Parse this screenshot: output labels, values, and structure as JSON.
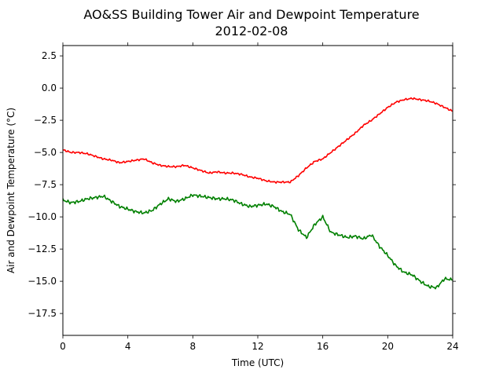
{
  "chart_data": {
    "type": "line",
    "title": "AO&SS Building Tower Air and Dewpoint Temperature",
    "subtitle": "2012-02-08",
    "xlabel": "Time (UTC)",
    "ylabel": "Air and Dewpoint Temperature (°C)",
    "xlim": [
      0,
      24
    ],
    "ylim": [
      -19.2,
      3.3
    ],
    "xticks": [
      0,
      4,
      8,
      12,
      16,
      20,
      24
    ],
    "xtick_labels": [
      "0",
      "4",
      "8",
      "12",
      "16",
      "20",
      "24"
    ],
    "yticks": [
      2.5,
      0.0,
      -2.5,
      -5.0,
      -7.5,
      -10.0,
      -12.5,
      -15.0,
      -17.5
    ],
    "ytick_labels": [
      "2.5",
      "0.0",
      "−2.5",
      "−5.0",
      "−7.5",
      "−10.0",
      "−12.5",
      "−15.0",
      "−17.5"
    ],
    "grid": false,
    "legend": "none",
    "series": [
      {
        "color": "#ff0000",
        "x": [
          0,
          0.5,
          1,
          1.5,
          2,
          2.5,
          3,
          3.5,
          4,
          4.5,
          5,
          5.5,
          6,
          6.5,
          7,
          7.5,
          8,
          8.5,
          9,
          9.5,
          10,
          10.5,
          11,
          11.5,
          12,
          12.5,
          13,
          13.5,
          14,
          14.5,
          15,
          15.5,
          16,
          16.5,
          17,
          17.5,
          18,
          18.5,
          19,
          19.5,
          20,
          20.5,
          21,
          21.5,
          22,
          22.5,
          23,
          23.5,
          24
        ],
        "y": [
          -4.8,
          -5.0,
          -5.0,
          -5.1,
          -5.3,
          -5.5,
          -5.6,
          -5.8,
          -5.7,
          -5.6,
          -5.5,
          -5.8,
          -6.0,
          -6.1,
          -6.1,
          -6.0,
          -6.2,
          -6.4,
          -6.6,
          -6.5,
          -6.6,
          -6.6,
          -6.7,
          -6.9,
          -7.0,
          -7.2,
          -7.3,
          -7.3,
          -7.3,
          -6.8,
          -6.2,
          -5.7,
          -5.5,
          -5.0,
          -4.5,
          -4.0,
          -3.5,
          -2.9,
          -2.5,
          -2.0,
          -1.5,
          -1.1,
          -0.9,
          -0.8,
          -0.9,
          -1.0,
          -1.2,
          -1.5,
          -1.8
        ]
      },
      {
        "color": "#008000",
        "x": [
          0,
          0.5,
          1,
          1.5,
          2,
          2.5,
          3,
          3.5,
          4,
          4.5,
          5,
          5.5,
          6,
          6.5,
          7,
          7.5,
          8,
          8.5,
          9,
          9.5,
          10,
          10.5,
          11,
          11.5,
          12,
          12.5,
          13,
          13.5,
          14,
          14.5,
          15,
          15.5,
          16,
          16.5,
          17,
          17.5,
          18,
          18.5,
          19,
          19.5,
          20,
          20.5,
          21,
          21.5,
          22,
          22.5,
          23,
          23.5,
          24
        ],
        "y": [
          -8.7,
          -8.9,
          -8.8,
          -8.6,
          -8.5,
          -8.4,
          -8.8,
          -9.2,
          -9.4,
          -9.6,
          -9.7,
          -9.5,
          -9.0,
          -8.6,
          -8.8,
          -8.6,
          -8.3,
          -8.4,
          -8.5,
          -8.6,
          -8.6,
          -8.7,
          -9.0,
          -9.2,
          -9.1,
          -9.0,
          -9.2,
          -9.6,
          -9.8,
          -11.0,
          -11.6,
          -10.6,
          -10.0,
          -11.2,
          -11.4,
          -11.6,
          -11.5,
          -11.7,
          -11.4,
          -12.3,
          -13.0,
          -13.8,
          -14.3,
          -14.5,
          -15.0,
          -15.4,
          -15.5,
          -14.8,
          -14.9
        ]
      }
    ]
  }
}
